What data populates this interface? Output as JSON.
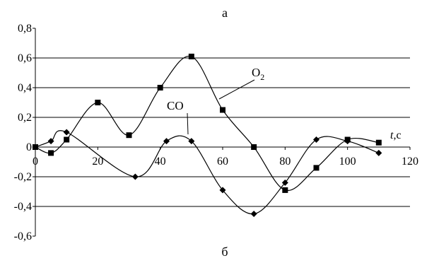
{
  "chart_data": {
    "type": "line",
    "top_caption": "а",
    "bottom_caption": "б",
    "xlabel_italic": "t",
    "xlabel_unit": ",с",
    "ylabel": "",
    "xlim": [
      0,
      120
    ],
    "ylim": [
      -0.6,
      0.8
    ],
    "x_ticks": [
      {
        "value": 0,
        "label": "0"
      },
      {
        "value": 20,
        "label": "20"
      },
      {
        "value": 40,
        "label": "40"
      },
      {
        "value": 60,
        "label": "60"
      },
      {
        "value": 80,
        "label": "80"
      },
      {
        "value": 100,
        "label": "100"
      },
      {
        "value": 120,
        "label": "120"
      }
    ],
    "y_ticks": [
      {
        "value": 0.8,
        "label": "0,8"
      },
      {
        "value": 0.6,
        "label": "0,6"
      },
      {
        "value": 0.4,
        "label": "0,4"
      },
      {
        "value": 0.2,
        "label": "0,2"
      },
      {
        "value": 0,
        "label": "0"
      },
      {
        "value": -0.2,
        "label": "-0,2"
      },
      {
        "value": -0.4,
        "label": "-0,4"
      },
      {
        "value": -0.6,
        "label": "-0,6"
      }
    ],
    "gridlines_y": [
      0.6,
      0.4,
      0.2,
      -0.2,
      -0.4
    ],
    "series": [
      {
        "name": "O",
        "name_subscript": "2",
        "marker": "square",
        "color": "#000000",
        "x": [
          0,
          5,
          10,
          20,
          30,
          40,
          50,
          60,
          70,
          80,
          90,
          100,
          110
        ],
        "y": [
          0.0,
          -0.04,
          0.05,
          0.3,
          0.08,
          0.4,
          0.61,
          0.25,
          0.0,
          -0.29,
          -0.14,
          0.05,
          0.03
        ]
      },
      {
        "name": "CO",
        "marker": "diamond",
        "color": "#000000",
        "x": [
          0,
          5,
          10,
          32,
          42,
          50,
          60,
          70,
          80,
          90,
          100,
          110
        ],
        "y": [
          0.0,
          0.04,
          0.1,
          -0.2,
          0.04,
          0.04,
          -0.29,
          -0.45,
          -0.24,
          0.05,
          0.04,
          -0.04
        ]
      }
    ]
  }
}
